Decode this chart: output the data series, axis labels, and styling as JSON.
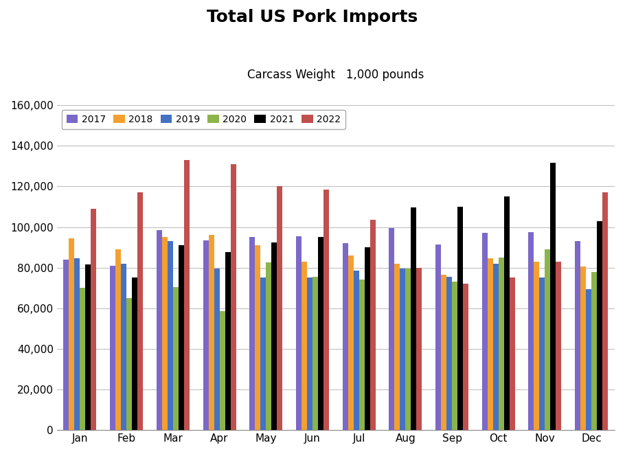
{
  "title": "Total US Pork Imports",
  "subtitle": "Carcass Weight   1,000 pounds",
  "months": [
    "Jan",
    "Feb",
    "Mar",
    "Apr",
    "May",
    "Jun",
    "Jul",
    "Aug",
    "Sep",
    "Oct",
    "Nov",
    "Dec"
  ],
  "series": {
    "2017": [
      84000,
      81000,
      98500,
      93500,
      95000,
      95500,
      92000,
      99500,
      91500,
      97000,
      97500,
      93000
    ],
    "2018": [
      94500,
      89000,
      95000,
      96000,
      91000,
      83000,
      86000,
      82000,
      76500,
      84500,
      83000,
      80500
    ],
    "2019": [
      84500,
      82000,
      93000,
      79500,
      75000,
      75000,
      78500,
      79500,
      75500,
      82000,
      75000,
      69500
    ],
    "2020": [
      70000,
      65000,
      70500,
      58500,
      82500,
      75500,
      74000,
      79500,
      73000,
      85000,
      89000,
      78000
    ],
    "2021": [
      81500,
      75000,
      91000,
      87500,
      92500,
      95000,
      90000,
      109500,
      110000,
      115000,
      131500,
      103000
    ],
    "2022": [
      109000,
      117000,
      133000,
      131000,
      120000,
      118500,
      103500,
      80000,
      72000,
      75000,
      83000,
      117000
    ]
  },
  "colors": {
    "2017": "#7B68C8",
    "2018": "#F4A030",
    "2019": "#4472C4",
    "2020": "#8CB44A",
    "2021": "#000000",
    "2022": "#C0504D"
  },
  "ylim": [
    0,
    160000
  ],
  "ytick_interval": 20000,
  "background_color": "#FFFFFF",
  "grid_color": "#C0C0C0",
  "title_fontsize": 18,
  "subtitle_fontsize": 12,
  "legend_fontsize": 10,
  "tick_fontsize": 11
}
